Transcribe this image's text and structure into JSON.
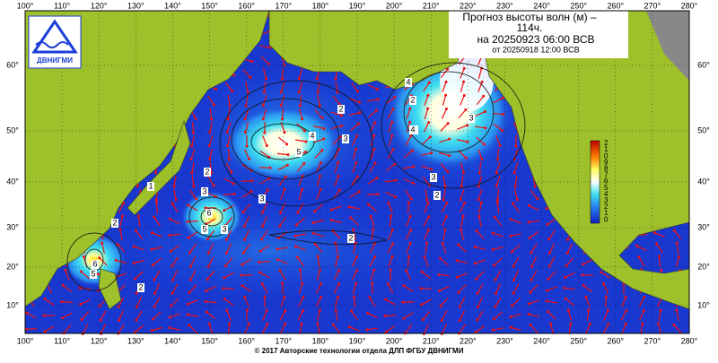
{
  "title_lines": [
    "Прогноз высоты волн (м) –",
    "114ч.",
    "на 20250923 06:00 ВСВ",
    "от 20250918 12:00 ВСВ"
  ],
  "lon_labels": [
    "100°",
    "110°",
    "120°",
    "130°",
    "140°",
    "150°",
    "160°",
    "170°",
    "180°",
    "190°",
    "200°",
    "210°",
    "220°",
    "230°",
    "240°",
    "250°",
    "260°",
    "270°",
    "280°"
  ],
  "lat_labels": [
    "60°",
    "50°",
    "40°",
    "30°",
    "20°",
    "10°"
  ],
  "colorbar_labels": [
    "2",
    "1",
    "0",
    "9",
    "8",
    "7",
    "6",
    "5",
    "4",
    "3",
    "2",
    "1",
    "0"
  ],
  "contour_labels": [
    "4",
    "2",
    "3",
    "4",
    "5",
    "2",
    "3",
    "3",
    "4",
    "3",
    "2",
    "2",
    "1",
    "2",
    "3",
    "6",
    "5",
    "3",
    "2",
    "6",
    "5",
    "2",
    "3"
  ],
  "logo": "ДВНИГМИ",
  "footer": "© 2017 Авторские технологии отдела ДЛП ФГБУ ДВНИГМИ"
}
